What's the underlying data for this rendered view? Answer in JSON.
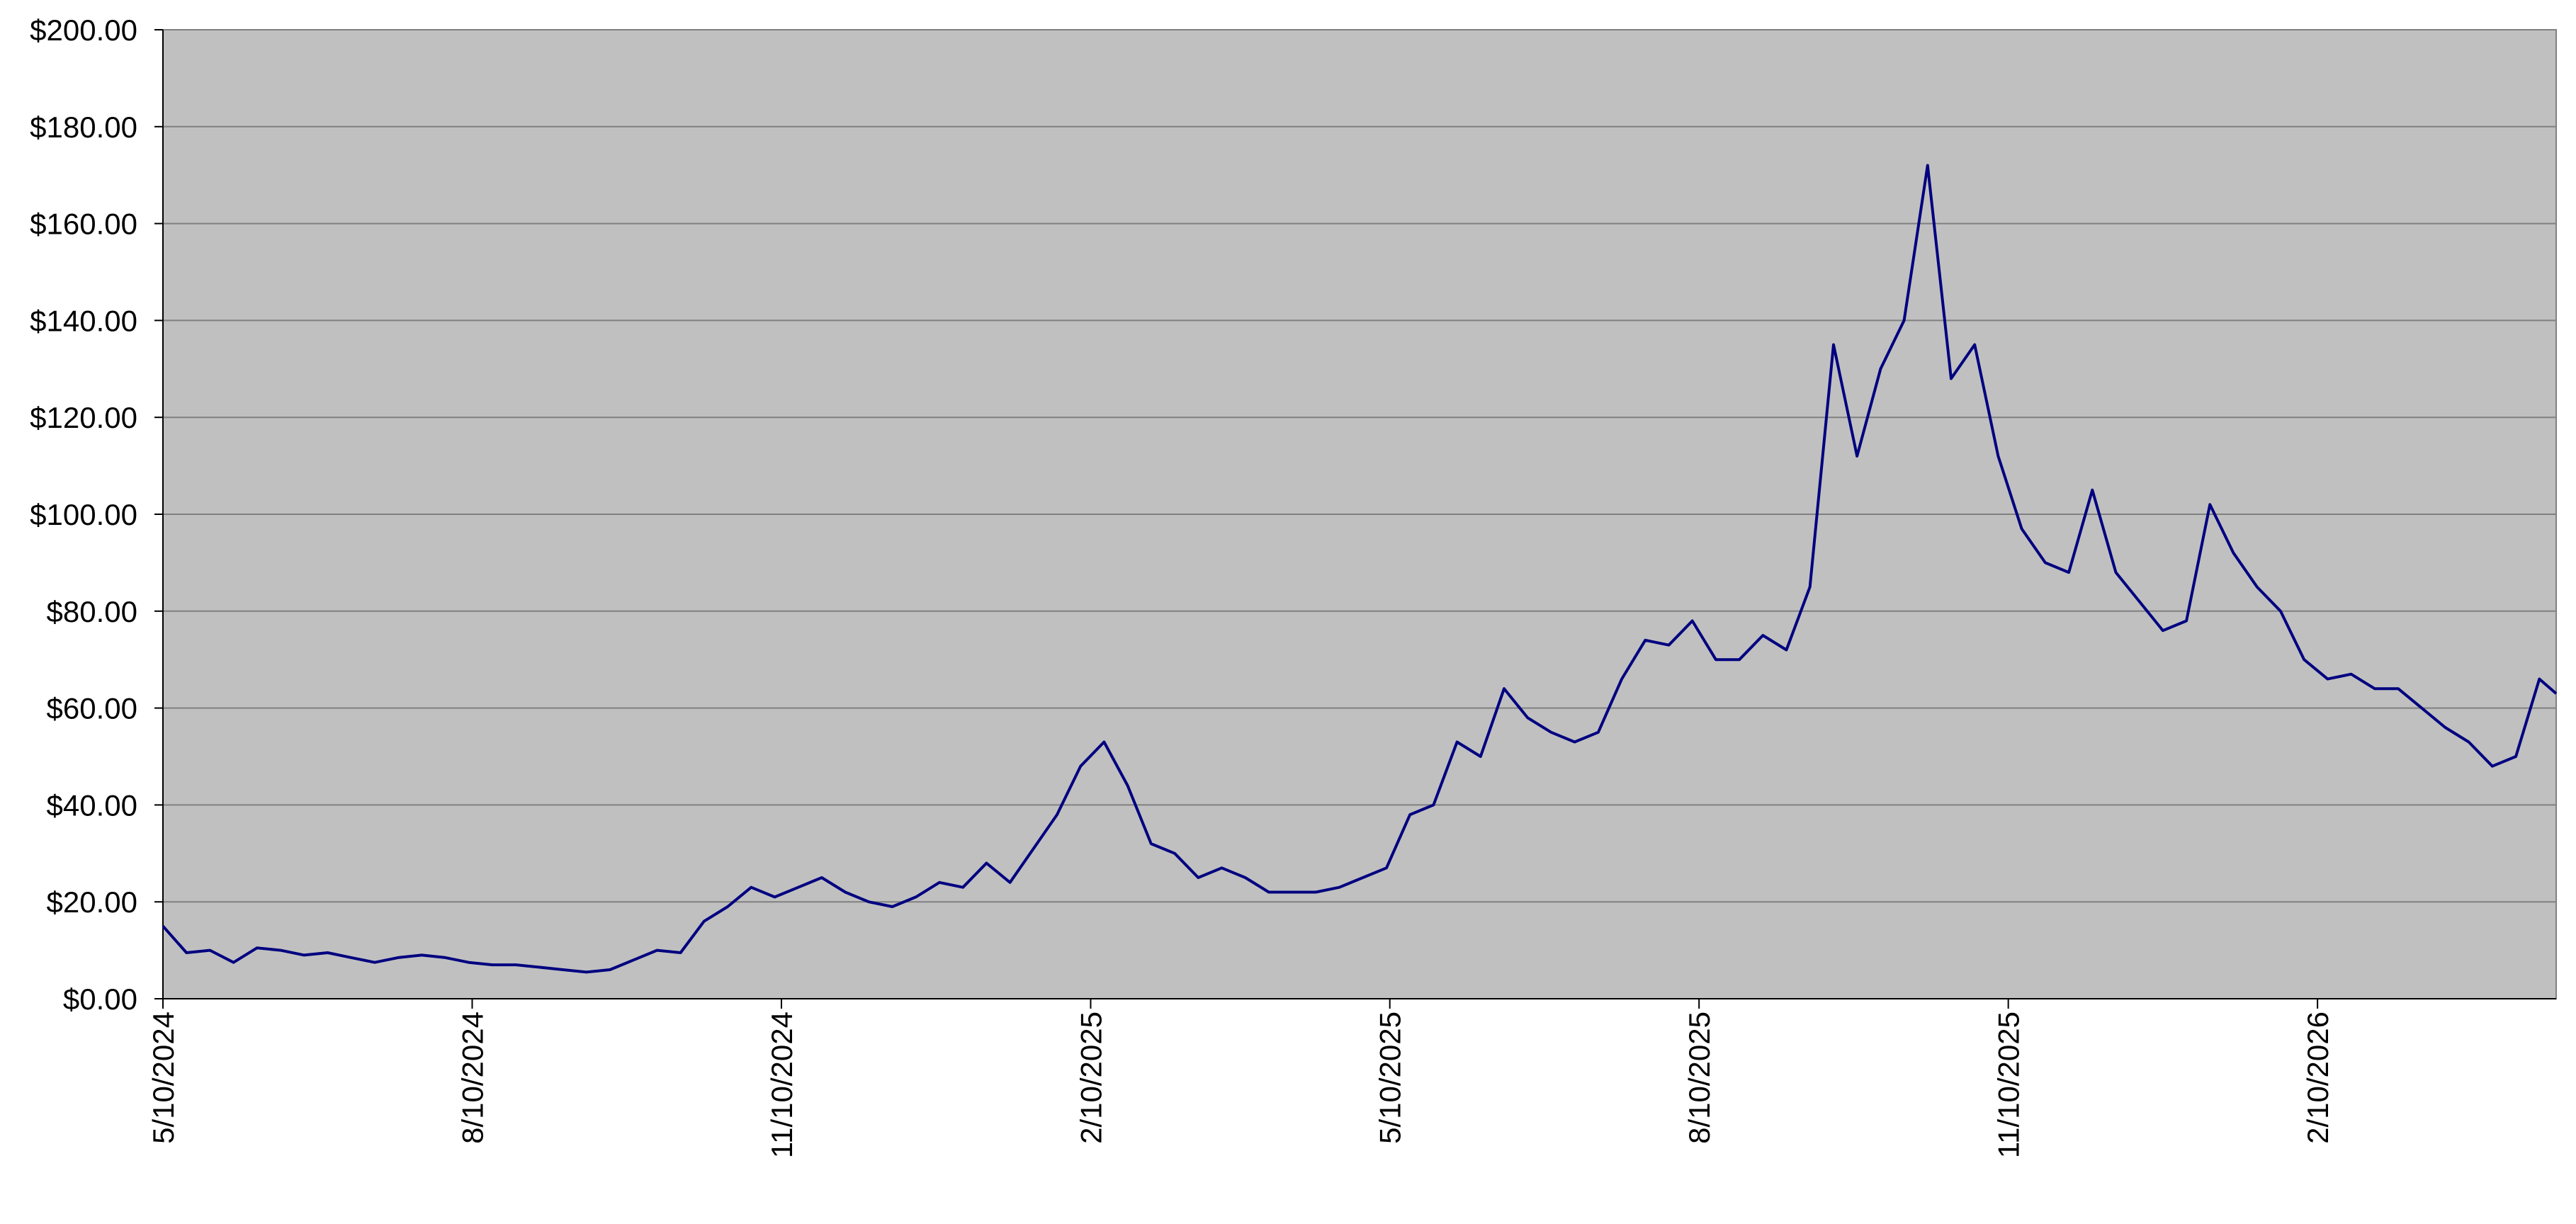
{
  "chart_data": {
    "type": "line",
    "color": "#000080",
    "background": "#c0c0c0",
    "grid": true,
    "x": [
      "5/10/2024",
      "5/17/2024",
      "5/24/2024",
      "5/31/2024",
      "6/7/2024",
      "6/14/2024",
      "6/21/2024",
      "6/28/2024",
      "7/5/2024",
      "7/12/2024",
      "7/19/2024",
      "7/26/2024",
      "8/2/2024",
      "8/9/2024",
      "8/16/2024",
      "8/23/2024",
      "8/30/2024",
      "9/6/2024",
      "9/13/2024",
      "9/20/2024",
      "9/27/2024",
      "10/4/2024",
      "10/11/2024",
      "10/18/2024",
      "10/25/2024",
      "11/1/2024",
      "11/8/2024",
      "11/15/2024",
      "11/22/2024",
      "11/29/2024",
      "12/6/2024",
      "12/13/2024",
      "12/20/2024",
      "12/27/2024",
      "1/3/2025",
      "1/10/2025",
      "1/17/2025",
      "1/24/2025",
      "1/31/2025",
      "2/7/2025",
      "2/14/2025",
      "2/21/2025",
      "2/28/2025",
      "3/7/2025",
      "3/14/2025",
      "3/21/2025",
      "3/28/2025",
      "4/4/2025",
      "4/11/2025",
      "4/18/2025",
      "4/25/2025",
      "5/2/2025",
      "5/9/2025",
      "5/16/2025",
      "5/23/2025",
      "5/30/2025",
      "6/6/2025",
      "6/13/2025",
      "6/20/2025",
      "6/27/2025",
      "7/4/2025",
      "7/11/2025",
      "7/18/2025",
      "7/25/2025",
      "8/1/2025",
      "8/8/2025",
      "8/15/2025",
      "8/22/2025",
      "8/29/2025",
      "9/5/2025",
      "9/12/2025",
      "9/19/2025",
      "9/26/2025",
      "10/3/2025",
      "10/10/2025",
      "10/17/2025",
      "10/24/2025",
      "10/31/2025",
      "11/7/2025",
      "11/14/2025",
      "11/21/2025",
      "11/28/2025",
      "12/5/2025",
      "12/12/2025",
      "12/19/2025",
      "12/26/2025",
      "1/2/2026",
      "1/9/2026",
      "1/16/2026",
      "1/23/2026",
      "1/30/2026",
      "2/6/2026",
      "2/13/2026",
      "2/20/2026",
      "2/27/2026",
      "3/6/2026",
      "3/13/2026",
      "3/20/2026",
      "3/27/2026",
      "4/3/2026",
      "4/10/2026",
      "4/17/2026",
      "4/22/2026"
    ],
    "values": [
      15,
      9.5,
      10,
      7.5,
      10.5,
      10,
      9,
      9.5,
      8.5,
      7.5,
      8.5,
      9,
      8.5,
      7.5,
      7,
      7,
      6.5,
      6,
      5.5,
      6,
      8,
      10,
      9.5,
      16,
      19,
      23,
      21,
      23,
      25,
      22,
      20,
      19,
      21,
      24,
      23,
      28,
      24,
      31,
      38,
      48,
      53,
      44,
      32,
      30,
      25,
      27,
      25,
      22,
      22,
      22,
      23,
      25,
      27,
      38,
      40,
      53,
      50,
      64,
      58,
      55,
      53,
      55,
      66,
      74,
      73,
      78,
      70,
      70,
      75,
      72,
      85,
      135,
      112,
      130,
      140,
      172,
      128,
      135,
      112,
      97,
      90,
      88,
      105,
      88,
      82,
      76,
      78,
      102,
      92,
      85,
      80,
      70,
      66,
      67,
      64,
      64,
      60,
      56,
      53,
      48,
      50,
      66,
      63
    ],
    "xlim": [
      "5/10/2024",
      "4/22/2026"
    ],
    "xticks": [
      "5/10/2024",
      "8/10/2024",
      "11/10/2024",
      "2/10/2025",
      "5/10/2025",
      "8/10/2025",
      "11/10/2025",
      "2/10/2026"
    ],
    "ylim": [
      0,
      200
    ],
    "yticks": [
      {
        "value": 0,
        "label": "$0.00"
      },
      {
        "value": 20,
        "label": "$20.00"
      },
      {
        "value": 40,
        "label": "$40.00"
      },
      {
        "value": 60,
        "label": "$60.00"
      },
      {
        "value": 80,
        "label": "$80.00"
      },
      {
        "value": 100,
        "label": "$100.00"
      },
      {
        "value": 120,
        "label": "$120.00"
      },
      {
        "value": 140,
        "label": "$140.00"
      },
      {
        "value": 160,
        "label": "$160.00"
      },
      {
        "value": 180,
        "label": "$180.00"
      },
      {
        "value": 200,
        "label": "$200.00"
      }
    ]
  }
}
